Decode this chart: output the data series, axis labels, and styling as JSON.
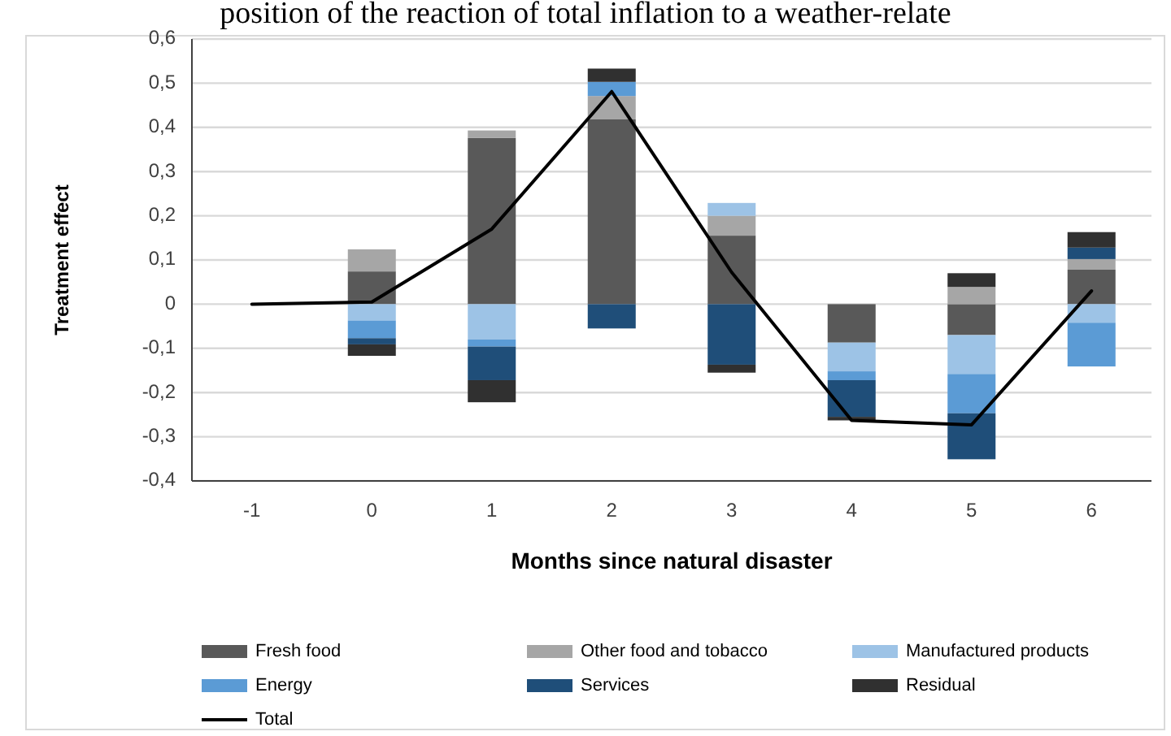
{
  "chart_data": {
    "type": "bar",
    "stacked": true,
    "title": "position of the reaction of total inflation to a weather-relate",
    "xlabel": "Months since natural disaster",
    "ylabel": "Treatment effect",
    "categories": [
      "-1",
      "0",
      "1",
      "2",
      "3",
      "4",
      "5",
      "6"
    ],
    "ylim": [
      -0.4,
      0.6
    ],
    "yticks": [
      {
        "value": -0.4,
        "label": "-0,4"
      },
      {
        "value": -0.3,
        "label": "-0,3"
      },
      {
        "value": -0.2,
        "label": "-0,2"
      },
      {
        "value": -0.1,
        "label": "-0,1"
      },
      0,
      {
        "value": 0.1,
        "label": "0,1"
      },
      {
        "value": 0.2,
        "label": "0,2"
      },
      {
        "value": 0.3,
        "label": "0,3"
      },
      {
        "value": 0.4,
        "label": "0,4"
      },
      {
        "value": 0.5,
        "label": "0,5"
      },
      {
        "value": 0.6,
        "label": "0,6"
      }
    ],
    "grid": "y",
    "legend": "bottom",
    "series": [
      {
        "name": "Fresh food",
        "color": "#595959",
        "values": [
          null,
          0.074,
          0.376,
          0.418,
          0.155,
          -0.087,
          -0.07,
          0.078
        ]
      },
      {
        "name": "Other food and tobacco",
        "color": "#a6a6a6",
        "values": [
          null,
          0.05,
          0.017,
          0.053,
          0.045,
          null,
          0.039,
          0.024
        ]
      },
      {
        "name": "Manufactured products",
        "color": "#9dc3e6",
        "values": [
          null,
          -0.037,
          -0.08,
          null,
          0.029,
          -0.065,
          -0.088,
          -0.042
        ]
      },
      {
        "name": "Energy",
        "color": "#5b9bd5",
        "values": [
          null,
          -0.04,
          -0.016,
          0.032,
          null,
          -0.02,
          -0.089,
          -0.099
        ]
      },
      {
        "name": "Services",
        "color": "#1f4e79",
        "values": [
          null,
          -0.014,
          -0.076,
          -0.055,
          -0.137,
          -0.083,
          -0.104,
          0.026
        ]
      },
      {
        "name": "Residual",
        "color": "#303030",
        "values": [
          null,
          -0.026,
          -0.05,
          0.03,
          -0.018,
          -0.008,
          0.031,
          0.035
        ]
      },
      {
        "name": "Total",
        "type": "line",
        "color": "#000000",
        "marker": "none",
        "values": [
          0,
          0.005,
          0.17,
          0.481,
          0.072,
          -0.263,
          -0.273,
          0.03
        ]
      }
    ]
  }
}
